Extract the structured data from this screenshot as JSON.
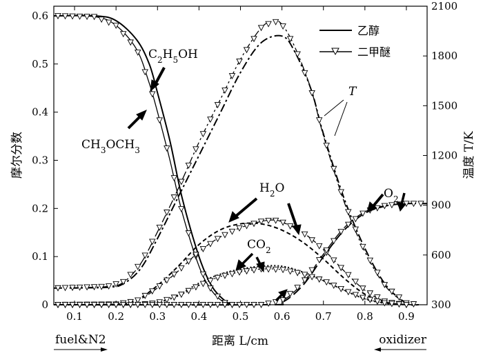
{
  "chart_data": {
    "type": "line",
    "xlabel": "距离 L/cm",
    "ylabel_left": "摩尔分数",
    "ylabel_right": "温度 T/K",
    "xlim": [
      0.05,
      0.95
    ],
    "ylim_left": [
      0,
      0.62
    ],
    "ylim_right": [
      300,
      2100
    ],
    "x_ticks": [
      "0.1",
      "0.2",
      "0.3",
      "0.4",
      "0.5",
      "0.6",
      "0.7",
      "0.8",
      "0.9"
    ],
    "y_left_ticks": [
      "0",
      "0.1",
      "0.2",
      "0.3",
      "0.4",
      "0.5",
      "0.6"
    ],
    "y_right_ticks": [
      "300",
      "600",
      "900",
      "1200",
      "1500",
      "1800",
      "2100"
    ],
    "legend": [
      {
        "name": "乙醇",
        "marker": "none"
      },
      {
        "name": "二甲醚",
        "marker": "triangle-down"
      }
    ],
    "annotations": {
      "c2h5oh": "C2H5OH",
      "ch3och3": "CH3OCH3",
      "h2o": "H2O",
      "co2": "CO2",
      "o2": "O2",
      "t": "T",
      "fuel_side": "fuel&N2",
      "oxidizer_side": "oxidizer"
    },
    "series": [
      {
        "name": "C2H5OH (乙醇)",
        "style": "solid",
        "axis": "left",
        "x": [
          0.05,
          0.15,
          0.2,
          0.25,
          0.28,
          0.3,
          0.33,
          0.36,
          0.4,
          0.43,
          0.46,
          0.48
        ],
        "y": [
          0.6,
          0.6,
          0.59,
          0.55,
          0.5,
          0.44,
          0.34,
          0.22,
          0.1,
          0.04,
          0.01,
          0.0
        ]
      },
      {
        "name": "CH3OCH3 (二甲醚)",
        "style": "solid",
        "axis": "left",
        "markers": true,
        "x": [
          0.05,
          0.15,
          0.2,
          0.25,
          0.28,
          0.3,
          0.33,
          0.36,
          0.4,
          0.43,
          0.46,
          0.48
        ],
        "y": [
          0.6,
          0.598,
          0.58,
          0.53,
          0.46,
          0.4,
          0.3,
          0.19,
          0.08,
          0.03,
          0.005,
          0.0
        ]
      },
      {
        "name": "T (乙醇)",
        "style": "dashdot",
        "axis": "right",
        "x": [
          0.05,
          0.18,
          0.22,
          0.26,
          0.3,
          0.35,
          0.4,
          0.45,
          0.5,
          0.55,
          0.6,
          0.63,
          0.67,
          0.7,
          0.75,
          0.8,
          0.85,
          0.9,
          0.93
        ],
        "y": [
          400,
          405,
          430,
          520,
          700,
          950,
          1200,
          1450,
          1700,
          1880,
          1920,
          1830,
          1600,
          1330,
          940,
          640,
          420,
          310,
          300
        ]
      },
      {
        "name": "T (二甲醚)",
        "style": "dashdot",
        "axis": "right",
        "markers": true,
        "x": [
          0.05,
          0.18,
          0.22,
          0.26,
          0.3,
          0.35,
          0.4,
          0.45,
          0.5,
          0.55,
          0.58,
          0.6,
          0.63,
          0.67,
          0.7,
          0.75,
          0.8,
          0.85,
          0.9,
          0.93
        ],
        "y": [
          400,
          410,
          440,
          550,
          740,
          1000,
          1280,
          1530,
          1780,
          1970,
          2010,
          1990,
          1860,
          1600,
          1320,
          920,
          620,
          410,
          310,
          300
        ]
      },
      {
        "name": "H2O (乙醇)",
        "style": "dashed",
        "axis": "left",
        "x": [
          0.05,
          0.2,
          0.25,
          0.3,
          0.35,
          0.4,
          0.45,
          0.5,
          0.55,
          0.6,
          0.65,
          0.7,
          0.75,
          0.8,
          0.85,
          0.9
        ],
        "y": [
          0,
          0.001,
          0.01,
          0.04,
          0.08,
          0.125,
          0.155,
          0.168,
          0.168,
          0.155,
          0.13,
          0.095,
          0.055,
          0.022,
          0.005,
          0.0
        ]
      },
      {
        "name": "H2O (二甲醚)",
        "style": "dashed",
        "axis": "left",
        "markers": true,
        "x": [
          0.05,
          0.2,
          0.25,
          0.3,
          0.35,
          0.4,
          0.45,
          0.5,
          0.55,
          0.58,
          0.6,
          0.65,
          0.7,
          0.75,
          0.8,
          0.85,
          0.9
        ],
        "y": [
          0,
          0.001,
          0.008,
          0.035,
          0.07,
          0.11,
          0.14,
          0.16,
          0.173,
          0.176,
          0.172,
          0.15,
          0.115,
          0.07,
          0.03,
          0.006,
          0.0
        ]
      },
      {
        "name": "CO2 (乙醇)",
        "style": "dotted",
        "axis": "left",
        "x": [
          0.05,
          0.25,
          0.3,
          0.35,
          0.4,
          0.45,
          0.5,
          0.55,
          0.6,
          0.65,
          0.7,
          0.75,
          0.8,
          0.85,
          0.9
        ],
        "y": [
          0,
          0.0,
          0.005,
          0.02,
          0.045,
          0.063,
          0.074,
          0.08,
          0.08,
          0.068,
          0.05,
          0.03,
          0.012,
          0.003,
          0.0
        ]
      },
      {
        "name": "CO2 (二甲醚)",
        "style": "dotted",
        "axis": "left",
        "markers": true,
        "x": [
          0.05,
          0.25,
          0.3,
          0.35,
          0.4,
          0.45,
          0.5,
          0.55,
          0.6,
          0.65,
          0.7,
          0.75,
          0.8,
          0.85,
          0.9
        ],
        "y": [
          0,
          0.0,
          0.004,
          0.018,
          0.04,
          0.058,
          0.068,
          0.074,
          0.073,
          0.064,
          0.05,
          0.03,
          0.013,
          0.003,
          0.0
        ]
      },
      {
        "name": "O2 (乙醇)",
        "style": "dashed-long",
        "axis": "left",
        "x": [
          0.05,
          0.55,
          0.6,
          0.65,
          0.7,
          0.75,
          0.8,
          0.85,
          0.9,
          0.95
        ],
        "y": [
          0,
          0,
          0.005,
          0.04,
          0.1,
          0.155,
          0.19,
          0.205,
          0.21,
          0.21
        ]
      },
      {
        "name": "O2 (二甲醚)",
        "style": "dashed-long",
        "axis": "left",
        "markers": true,
        "x": [
          0.05,
          0.55,
          0.6,
          0.65,
          0.7,
          0.75,
          0.8,
          0.85,
          0.9,
          0.95
        ],
        "y": [
          0,
          0,
          0.008,
          0.045,
          0.105,
          0.16,
          0.193,
          0.206,
          0.21,
          0.21
        ]
      }
    ],
    "grid": false
  }
}
